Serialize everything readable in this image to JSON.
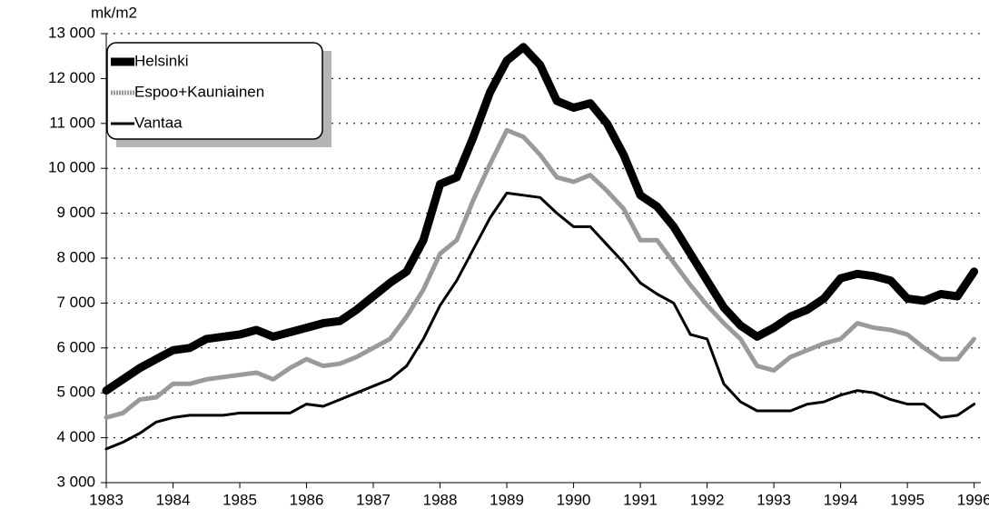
{
  "chart_data": {
    "type": "line",
    "y_label": "mk/m2",
    "x": [
      1983,
      1983.25,
      1983.5,
      1983.75,
      1984,
      1984.25,
      1984.5,
      1984.75,
      1985,
      1985.25,
      1985.5,
      1985.75,
      1986,
      1986.25,
      1986.5,
      1986.75,
      1987,
      1987.25,
      1987.5,
      1987.75,
      1988,
      1988.25,
      1988.5,
      1988.75,
      1989,
      1989.25,
      1989.5,
      1989.75,
      1990,
      1990.25,
      1990.5,
      1990.75,
      1991,
      1991.25,
      1991.5,
      1991.75,
      1992,
      1992.25,
      1992.5,
      1992.75,
      1993,
      1993.25,
      1993.5,
      1993.75,
      1994,
      1994.25,
      1994.5,
      1994.75,
      1995,
      1995.25,
      1995.5,
      1995.75,
      1996
    ],
    "series": [
      {
        "name": "Helsinki",
        "color": "#000000",
        "values": [
          5050,
          5300,
          5550,
          5750,
          5950,
          6000,
          6200,
          6250,
          6300,
          6400,
          6250,
          6350,
          6450,
          6550,
          6600,
          6850,
          7150,
          7450,
          7700,
          8400,
          9650,
          9800,
          10700,
          11700,
          12400,
          12700,
          12300,
          11500,
          11350,
          11450,
          11000,
          10300,
          9400,
          9150,
          8700,
          8100,
          7500,
          6900,
          6500,
          6250,
          6450,
          6700,
          6850,
          7100,
          7550,
          7650,
          7600,
          7500,
          7100,
          7050,
          7200,
          7150,
          7700
        ]
      },
      {
        "name": "Espoo+Kauniainen",
        "color": "#9a9a9a",
        "values": [
          4450,
          4550,
          4850,
          4900,
          5200,
          5200,
          5300,
          5350,
          5400,
          5450,
          5300,
          5550,
          5750,
          5600,
          5650,
          5800,
          6000,
          6200,
          6700,
          7300,
          8100,
          8400,
          9300,
          10100,
          10850,
          10700,
          10300,
          9800,
          9700,
          9850,
          9500,
          9100,
          8400,
          8400,
          7900,
          7400,
          6950,
          6550,
          6200,
          5600,
          5500,
          5800,
          5950,
          6100,
          6200,
          6550,
          6450,
          6400,
          6300,
          6000,
          5750,
          5750,
          6200
        ]
      },
      {
        "name": "Vantaa",
        "color": "#000000",
        "values": [
          3750,
          3900,
          4100,
          4350,
          4450,
          4500,
          4500,
          4500,
          4550,
          4550,
          4550,
          4550,
          4750,
          4700,
          4850,
          5000,
          5150,
          5300,
          5600,
          6200,
          6950,
          7500,
          8200,
          8900,
          9450,
          9400,
          9350,
          9000,
          8700,
          8700,
          8300,
          7900,
          7450,
          7200,
          7000,
          6300,
          6200,
          5200,
          4800,
          4600,
          4600,
          4600,
          4750,
          4800,
          4950,
          5050,
          5000,
          4850,
          4750,
          4750,
          4450,
          4500,
          4750
        ]
      }
    ],
    "xlim": [
      1983,
      1996.1
    ],
    "xticks": [
      1983,
      1984,
      1985,
      1986,
      1987,
      1988,
      1989,
      1990,
      1991,
      1992,
      1993,
      1994,
      1995,
      1996
    ],
    "ylim": [
      3000,
      13000
    ],
    "yticks": [
      {
        "value": 3000,
        "label": "3 000"
      },
      {
        "value": 4000,
        "label": "4 000"
      },
      {
        "value": 5000,
        "label": "5 000"
      },
      {
        "value": 6000,
        "label": "6 000"
      },
      {
        "value": 7000,
        "label": "7 000"
      },
      {
        "value": 8000,
        "label": "8 000"
      },
      {
        "value": 9000,
        "label": "9 000"
      },
      {
        "value": 10000,
        "label": "10 000"
      },
      {
        "value": 11000,
        "label": "11 000"
      },
      {
        "value": 12000,
        "label": "12 000"
      },
      {
        "value": 13000,
        "label": "13 000"
      }
    ],
    "grid": true,
    "legend": "upper left"
  }
}
